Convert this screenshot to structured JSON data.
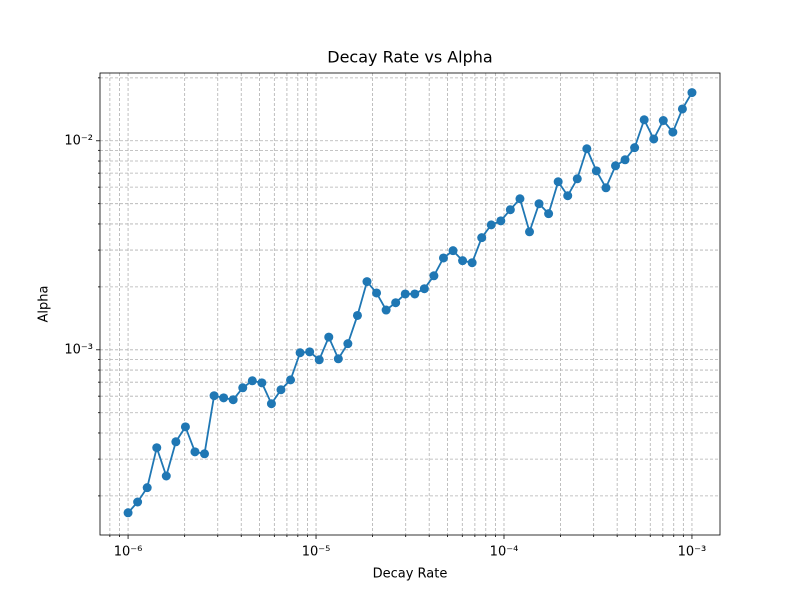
{
  "chart_data": {
    "type": "line",
    "title": "Decay Rate vs Alpha",
    "xlabel": "Decay Rate",
    "ylabel": "Alpha",
    "xscale": "log",
    "yscale": "log",
    "grid": true,
    "marker": "o",
    "xlim": [
      7.09e-07,
      0.00141
    ],
    "ylim": [
      0.00013,
      0.0211
    ],
    "xticks": [
      {
        "value": 1e-06,
        "label": "10⁻⁶"
      },
      {
        "value": 1e-05,
        "label": "10⁻⁵"
      },
      {
        "value": 0.0001,
        "label": "10⁻⁴"
      },
      {
        "value": 0.001,
        "label": "10⁻³"
      }
    ],
    "yticks": [
      {
        "value": 0.001,
        "label": "10⁻³"
      },
      {
        "value": 0.01,
        "label": "10⁻²"
      }
    ],
    "xminorticks": [
      8e-07,
      9e-07,
      2e-06,
      3e-06,
      4e-06,
      5e-06,
      6e-06,
      7e-06,
      8e-06,
      9e-06,
      2e-05,
      3e-05,
      4e-05,
      5e-05,
      6e-05,
      7e-05,
      8e-05,
      9e-05,
      0.0002,
      0.0003,
      0.0004,
      0.0005,
      0.0006,
      0.0007,
      0.0008,
      0.0009
    ],
    "yminorticks": [
      0.0002,
      0.0003,
      0.0004,
      0.0005,
      0.0006,
      0.0007,
      0.0008,
      0.0009,
      0.002,
      0.003,
      0.004,
      0.005,
      0.006,
      0.007,
      0.008,
      0.009,
      0.02
    ],
    "x": [
      1e-06,
      1.124e-06,
      1.264e-06,
      1.421e-06,
      1.597e-06,
      1.796e-06,
      2.019e-06,
      2.269e-06,
      2.551e-06,
      2.868e-06,
      3.224e-06,
      3.624e-06,
      4.075e-06,
      4.581e-06,
      5.15e-06,
      5.79e-06,
      6.509e-06,
      7.317e-06,
      8.227e-06,
      9.249e-06,
      1.04e-05,
      1.169e-05,
      1.314e-05,
      1.477e-05,
      1.661e-05,
      1.867e-05,
      2.099e-05,
      2.36e-05,
      2.653e-05,
      2.983e-05,
      3.353e-05,
      3.77e-05,
      4.238e-05,
      4.764e-05,
      5.356e-05,
      6.021e-05,
      6.769e-05,
      7.61e-05,
      8.555e-05,
      9.618e-05,
      0.0001081,
      0.0001216,
      0.0001367,
      0.0001536,
      0.0001727,
      0.0001942,
      0.0002183,
      0.0002454,
      0.0002759,
      0.0003101,
      0.0003487,
      0.000392,
      0.0004407,
      0.0004954,
      0.000557,
      0.0006261,
      0.0007039,
      0.0007914,
      0.0008897,
      0.001
    ],
    "series": [
      {
        "color": "#1f77b4",
        "values": [
          0.000166,
          0.000187,
          0.000219,
          0.00034,
          0.000249,
          0.000363,
          0.000428,
          0.000325,
          0.000318,
          0.000603,
          0.000589,
          0.000577,
          0.000658,
          0.000711,
          0.000695,
          0.000552,
          0.000644,
          0.000718,
          0.000968,
          0.000978,
          0.000896,
          0.00115,
          0.000906,
          0.00107,
          0.00146,
          0.00212,
          0.00187,
          0.00155,
          0.00168,
          0.00185,
          0.00185,
          0.00196,
          0.00226,
          0.00275,
          0.00298,
          0.00267,
          0.00261,
          0.00344,
          0.00396,
          0.00414,
          0.00468,
          0.00528,
          0.00367,
          0.005,
          0.00448,
          0.00637,
          0.00546,
          0.00658,
          0.00916,
          0.00718,
          0.00596,
          0.00759,
          0.00811,
          0.00927,
          0.0126,
          0.0102,
          0.0125,
          0.011,
          0.0142,
          0.017
        ]
      }
    ]
  }
}
